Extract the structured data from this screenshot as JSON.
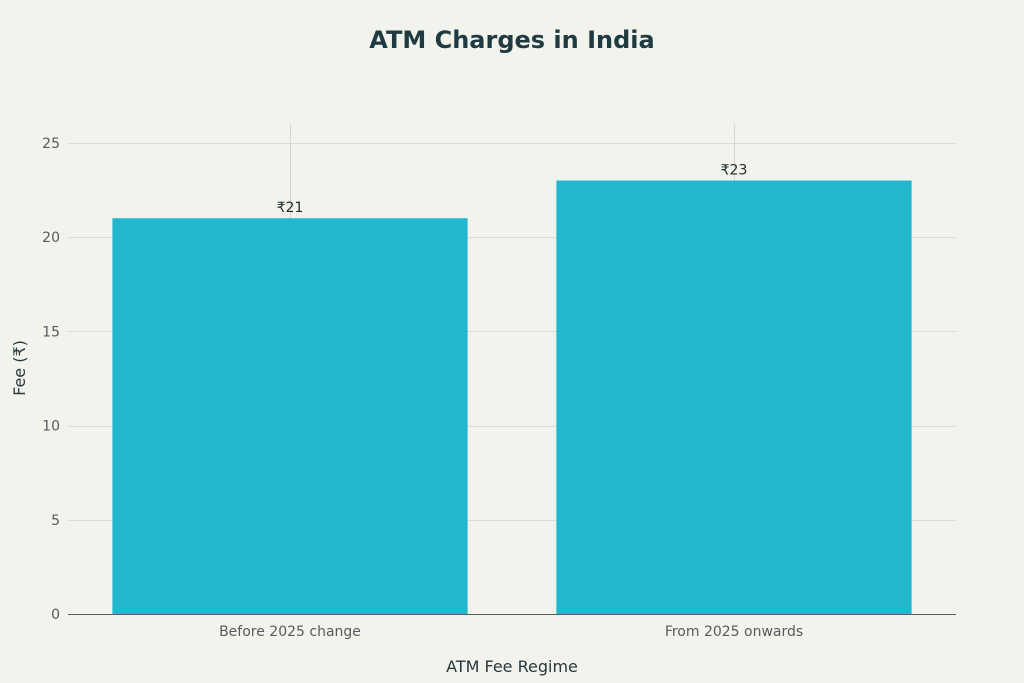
{
  "chart_data": {
    "type": "bar",
    "title": "ATM Charges in India",
    "xlabel": "ATM Fee Regime",
    "ylabel": "Fee (₹)",
    "categories": [
      "Before 2025 change",
      "From 2025 onwards"
    ],
    "values": [
      21,
      23
    ],
    "data_labels": [
      "₹21",
      "₹23"
    ],
    "ylim": [
      0,
      26
    ],
    "yticks": [
      0,
      5,
      10,
      15,
      20,
      25
    ],
    "ytick_labels": [
      "0",
      "5",
      "10",
      "15",
      "20",
      "25"
    ],
    "grid": true,
    "legend": "none",
    "colors": {
      "bar": "#21b7cc",
      "background": "#f3f3ee",
      "title": "#1f3a40"
    }
  }
}
